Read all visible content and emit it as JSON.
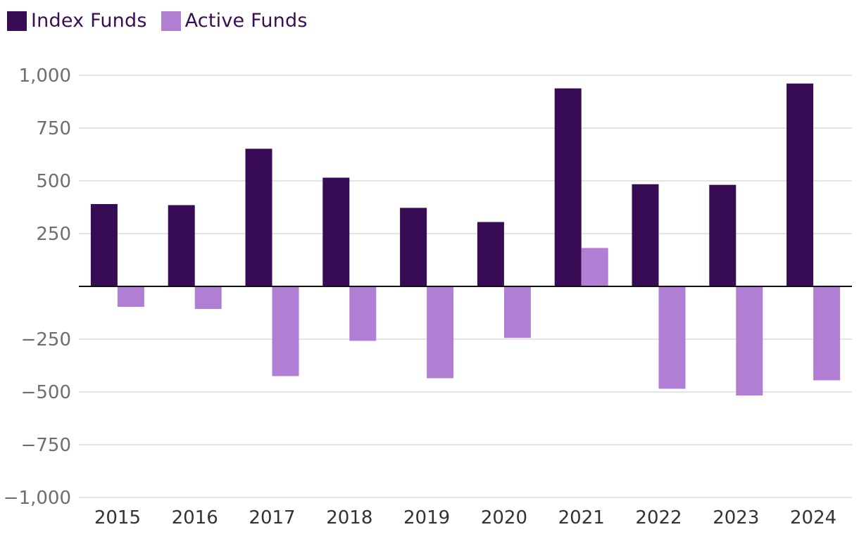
{
  "chart_data": {
    "type": "bar",
    "title": "",
    "xlabel": "",
    "ylabel": "",
    "categories": [
      "2015",
      "2016",
      "2017",
      "2018",
      "2019",
      "2020",
      "2021",
      "2022",
      "2023",
      "2024"
    ],
    "series": [
      {
        "name": "Index Funds",
        "color": "#380c54",
        "values": [
          390,
          385,
          652,
          515,
          372,
          305,
          938,
          484,
          481,
          961
        ]
      },
      {
        "name": "Active Funds",
        "color": "#b07fd3",
        "values": [
          -97,
          -107,
          -425,
          -258,
          -435,
          -244,
          182,
          -485,
          -517,
          -445
        ]
      }
    ],
    "ylim": [
      -1000,
      1000
    ],
    "yticks": [
      -1000,
      -750,
      -500,
      -250,
      250,
      500,
      750,
      1000
    ],
    "ytick_labels": [
      "−1,000",
      "−750",
      "−500",
      "−250",
      "250",
      "500",
      "750",
      "1,000"
    ],
    "grid": true,
    "legend_position": "top-left"
  }
}
